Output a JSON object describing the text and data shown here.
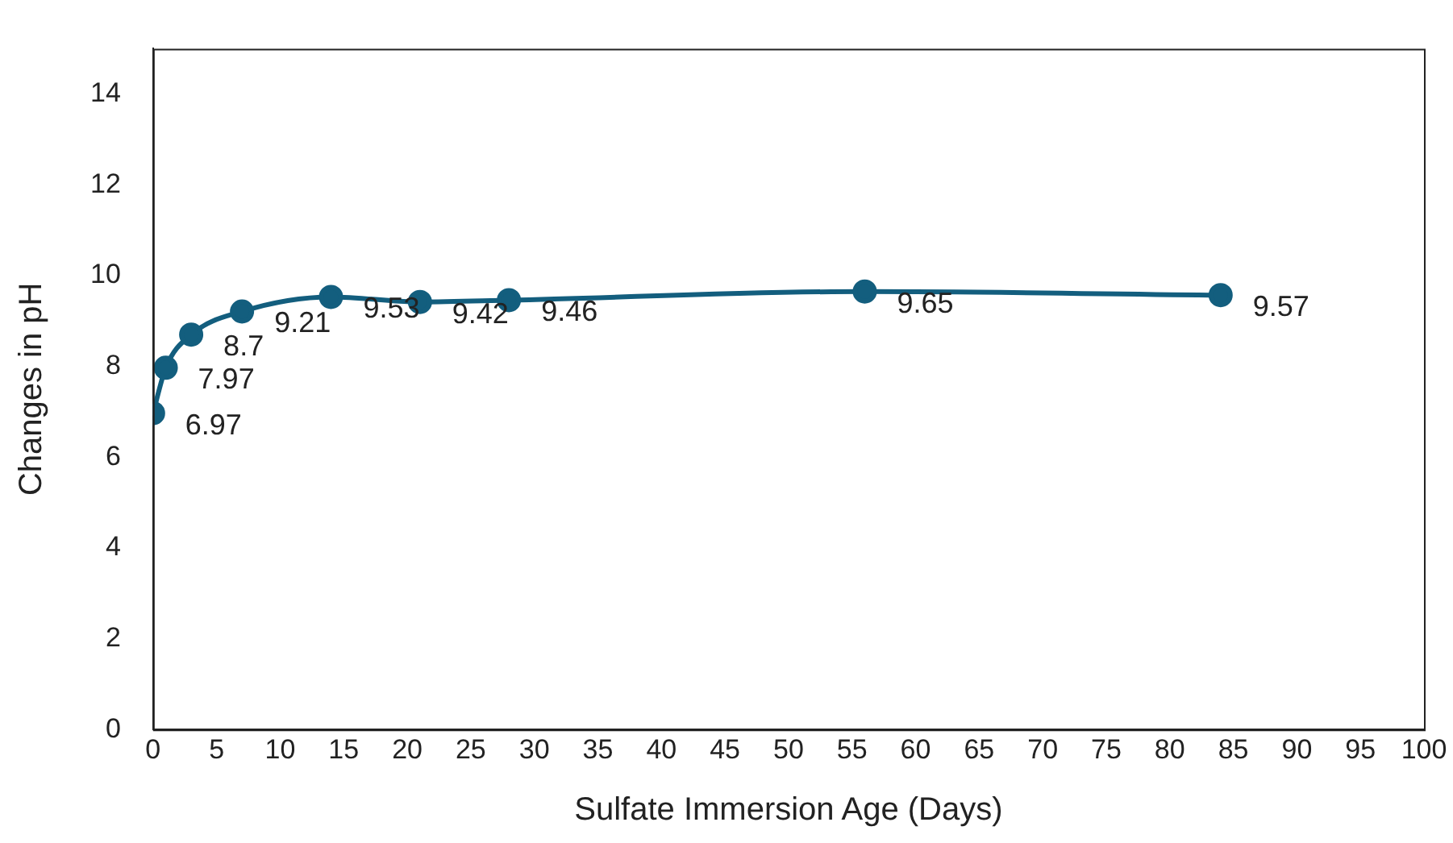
{
  "chart_data": {
    "type": "line",
    "xlabel": "Sulfate Immersion Age (Days)",
    "ylabel": "Changes in pH",
    "x": [
      0,
      1,
      3,
      7,
      14,
      21,
      28,
      56,
      84
    ],
    "series": [
      {
        "color": "#135e7e",
        "values": [
          6.97,
          7.97,
          8.7,
          9.21,
          9.53,
          9.42,
          9.46,
          9.65,
          9.57
        ]
      }
    ],
    "xlim": [
      0,
      100
    ],
    "xticks": [
      0,
      5,
      10,
      15,
      20,
      25,
      30,
      35,
      40,
      45,
      50,
      55,
      60,
      65,
      70,
      75,
      80,
      85,
      90,
      95,
      100
    ],
    "ylim": [
      0,
      15
    ],
    "yticks": [
      0,
      2,
      4,
      6,
      8,
      10,
      12,
      14
    ],
    "grid": false,
    "legend": false,
    "marker": "circle",
    "line_style": "solid",
    "data_labels": true
  }
}
